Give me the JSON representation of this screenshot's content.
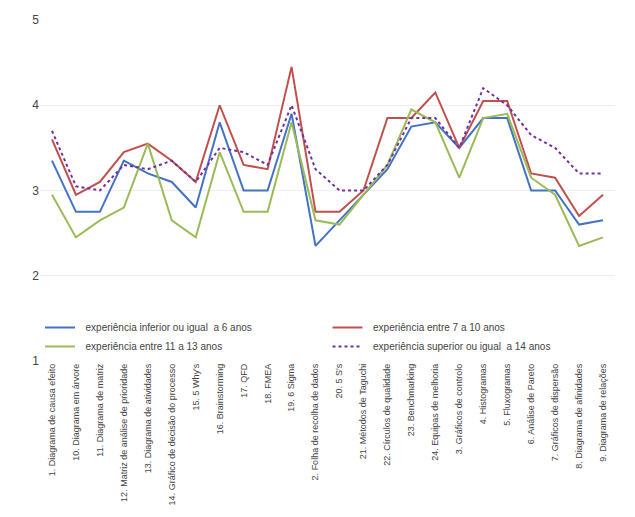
{
  "chart_data": {
    "type": "line",
    "categories": [
      "1. Diagrama de causa efeito",
      "10. Diagrama em árvore",
      "11. Diagrama de matriz",
      "12. Matriz de análise de prioridade",
      "13. Diagrama de atividades",
      "14. Gráfico de decisão do processo",
      "15. 5 Why's",
      "16. Brainstorming",
      "17. QFD",
      "18. FMEA",
      "19. 6 Sigma",
      "2. Folha de recolha de dados",
      "20. 5 S's",
      "21. Métodos de Taguchi",
      "22. Círculos de qualidade",
      "23. Benchmarking",
      "24. Equipas de melhoria",
      "3. Gráficos de controlo",
      "4. Histogramas",
      "5. Fluxogramas",
      "6. Análise de Pareto",
      "7. Gráficos de dispersão",
      "8. Diagrama de afinidades",
      "9. Diagrama de relações"
    ],
    "series": [
      {
        "name": "  experiência inferior ou igual  a 6 anos",
        "color": "#4472C4",
        "line_style": "solid",
        "values": [
          3.35,
          2.75,
          2.75,
          3.35,
          3.2,
          3.1,
          2.8,
          3.8,
          3.0,
          3.0,
          3.9,
          2.35,
          2.65,
          2.95,
          3.25,
          3.75,
          3.8,
          3.5,
          3.85,
          3.85,
          3.0,
          3.0,
          2.6,
          2.65
        ]
      },
      {
        "name": "  experiência entre 7 a 10 anos",
        "color": "#C0504D",
        "line_style": "solid",
        "values": [
          3.6,
          2.95,
          3.1,
          3.45,
          3.55,
          3.35,
          3.1,
          4.0,
          3.3,
          3.25,
          4.45,
          2.75,
          2.75,
          3.0,
          3.85,
          3.85,
          4.15,
          3.5,
          4.05,
          4.05,
          3.2,
          3.15,
          2.7,
          2.95
        ]
      },
      {
        "name": "  experiência entre 11 a 13 anos",
        "color": "#9BBB59",
        "line_style": "solid",
        "values": [
          2.95,
          2.45,
          2.65,
          2.8,
          3.55,
          2.65,
          2.45,
          3.45,
          2.75,
          2.75,
          3.8,
          2.65,
          2.6,
          2.95,
          3.3,
          3.95,
          3.8,
          3.15,
          3.85,
          3.9,
          3.15,
          2.95,
          2.35,
          2.45
        ]
      },
      {
        "name": "  experiência superior ou igual  a 14 anos",
        "color": "#7030A0",
        "line_style": "dotted",
        "values": [
          3.7,
          3.05,
          3.0,
          3.3,
          3.25,
          3.35,
          3.1,
          3.5,
          3.45,
          3.3,
          4.0,
          3.25,
          3.0,
          3.0,
          3.3,
          3.85,
          3.85,
          3.5,
          4.2,
          4.0,
          3.65,
          3.5,
          3.2,
          3.2
        ]
      }
    ],
    "ylim": [
      1,
      5
    ],
    "yticks": [
      1,
      2,
      3,
      4,
      5
    ],
    "grid": true,
    "legend": "lower left"
  }
}
